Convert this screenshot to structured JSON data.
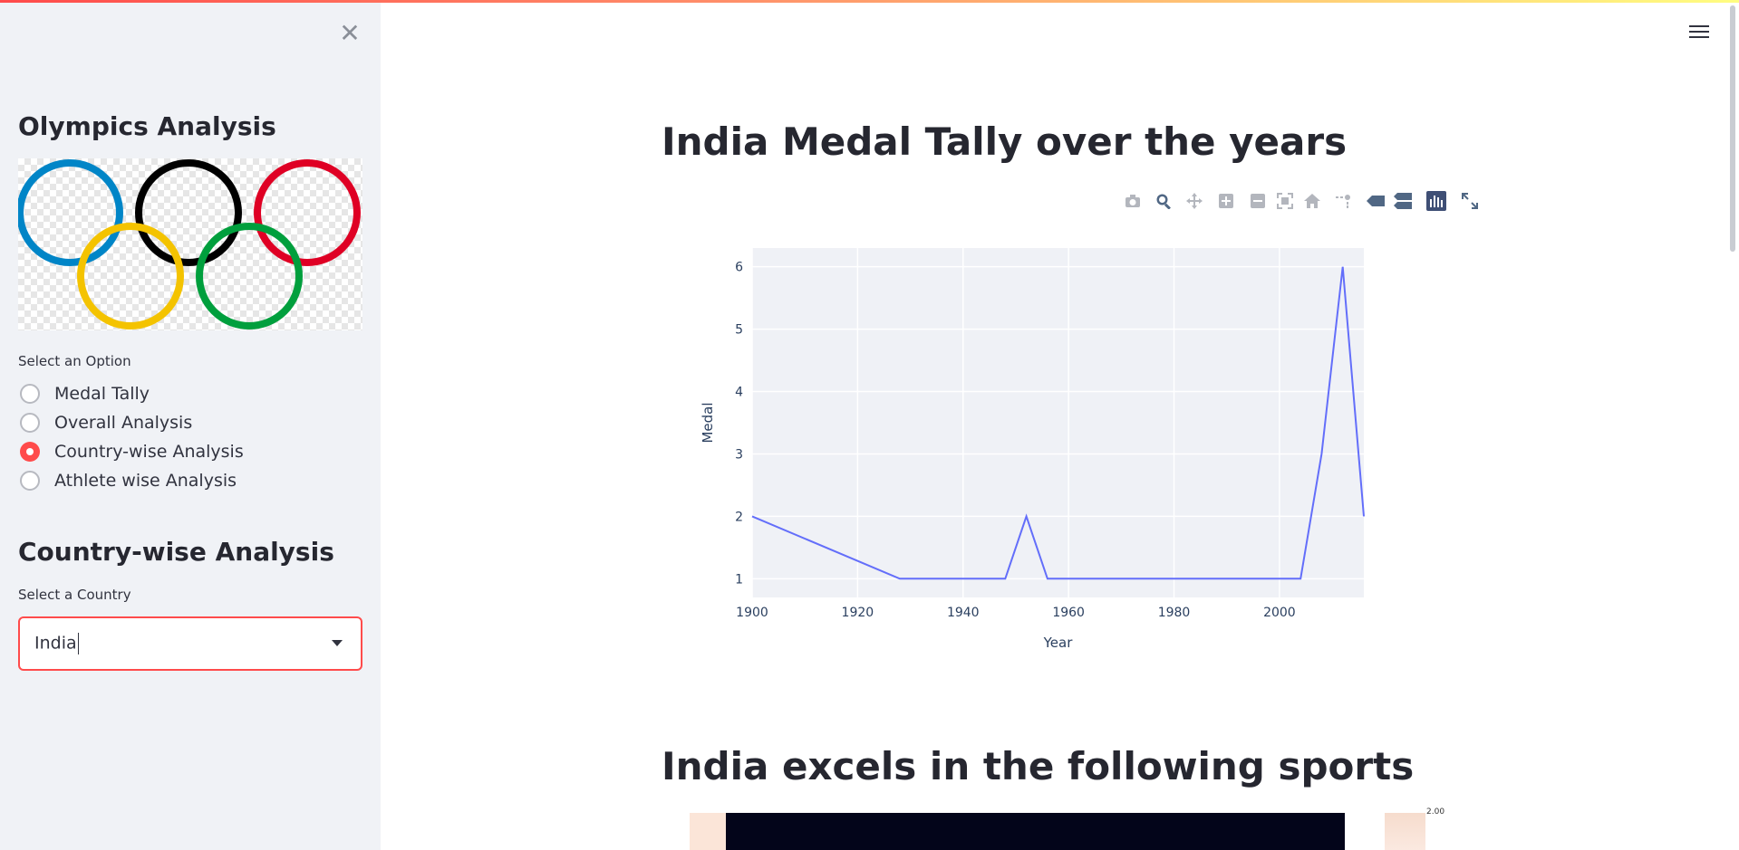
{
  "sidebar": {
    "close_icon": "close-icon",
    "title": "Olympics Analysis",
    "image_icon": "olympic-rings",
    "option_label": "Select an Option",
    "options": [
      "Medal Tally",
      "Overall Analysis",
      "Country-wise Analysis",
      "Athlete wise Analysis"
    ],
    "selected_index": 2,
    "section_title": "Country-wise Analysis",
    "country_label": "Select a Country",
    "country_value": "India"
  },
  "header": {
    "menu_icon": "hamburger-menu-icon"
  },
  "main": {
    "title1": "India Medal Tally over the years",
    "title2": "India excels in the following sports",
    "modebar_icons": [
      "camera-icon",
      "zoom-icon",
      "pan-icon",
      "zoom-in-icon",
      "zoom-out-icon",
      "autoscale-icon",
      "reset-axes-icon",
      "spike-lines-icon",
      "hover-closest-icon",
      "hover-compare-icon",
      "plotly-logo-icon",
      "fullscreen-icon"
    ],
    "heatmap_colorbar_label": "2.00"
  },
  "colors": {
    "accent": "#ff4b4b",
    "line": "#636efa",
    "plot_bg": "#e5ecf6"
  },
  "chart_data": {
    "type": "line",
    "x": [
      1900,
      1928,
      1932,
      1936,
      1948,
      1952,
      1956,
      1960,
      1964,
      1968,
      1972,
      1980,
      1984,
      1996,
      2000,
      2004,
      2008,
      2012,
      2016
    ],
    "y": [
      2,
      1,
      1,
      1,
      1,
      2,
      1,
      1,
      1,
      1,
      1,
      1,
      1,
      1,
      1,
      1,
      3,
      6,
      2
    ],
    "xlabel": "Year",
    "ylabel": "Medal",
    "xlim": [
      1900,
      2016
    ],
    "ylim": [
      0.7,
      6.3
    ],
    "xticks": [
      1900,
      1920,
      1940,
      1960,
      1980,
      2000
    ],
    "yticks": [
      1,
      2,
      3,
      4,
      5,
      6
    ],
    "grid": true
  }
}
